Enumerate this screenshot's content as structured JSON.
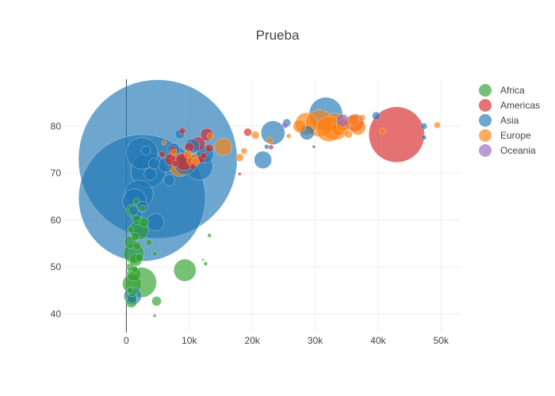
{
  "chart_data": {
    "type": "scatter",
    "title": "Prueba",
    "xlabel": "",
    "ylabel": "",
    "xlim": [
      -10000,
      53000
    ],
    "ylim": [
      36,
      90
    ],
    "x_ticks": [
      0,
      10000,
      20000,
      30000,
      40000,
      50000
    ],
    "x_tick_labels": [
      "0",
      "10k",
      "20k",
      "30k",
      "40k",
      "50k"
    ],
    "y_ticks": [
      40,
      50,
      60,
      70,
      80
    ],
    "y_tick_labels": [
      "40",
      "50",
      "60",
      "70",
      "80"
    ],
    "grid": true,
    "legend_position": "top-right",
    "marker_opacity": 0.65,
    "series": [
      {
        "name": "Africa",
        "color": "#2ca02c",
        "points": [
          {
            "x": 9300,
            "y": 49.3,
            "size": 28
          },
          {
            "x": 2400,
            "y": 46.7,
            "size": 38
          },
          {
            "x": 1200,
            "y": 52.9,
            "size": 26
          },
          {
            "x": 900,
            "y": 46.4,
            "size": 24
          },
          {
            "x": 2000,
            "y": 57.8,
            "size": 24
          },
          {
            "x": 1000,
            "y": 62.0,
            "size": 16
          },
          {
            "x": 700,
            "y": 55.3,
            "size": 16
          },
          {
            "x": 1200,
            "y": 48.5,
            "size": 18
          },
          {
            "x": 1500,
            "y": 51.5,
            "size": 16
          },
          {
            "x": 800,
            "y": 43.5,
            "size": 14
          },
          {
            "x": 800,
            "y": 42.5,
            "size": 14
          },
          {
            "x": 4800,
            "y": 42.7,
            "size": 12
          },
          {
            "x": 1700,
            "y": 60.0,
            "size": 12
          },
          {
            "x": 2800,
            "y": 59.5,
            "size": 12
          },
          {
            "x": 1400,
            "y": 56.5,
            "size": 10
          },
          {
            "x": 3600,
            "y": 55.2,
            "size": 8
          },
          {
            "x": 1700,
            "y": 54.5,
            "size": 10
          },
          {
            "x": 600,
            "y": 50.0,
            "size": 10
          },
          {
            "x": 2100,
            "y": 52.0,
            "size": 10
          },
          {
            "x": 1000,
            "y": 44.5,
            "size": 10
          },
          {
            "x": 4500,
            "y": 52.8,
            "size": 6
          },
          {
            "x": 12600,
            "y": 50.7,
            "size": 5
          },
          {
            "x": 12200,
            "y": 51.5,
            "size": 3
          },
          {
            "x": 13200,
            "y": 56.7,
            "size": 5
          },
          {
            "x": 4500,
            "y": 39.6,
            "size": 4
          },
          {
            "x": 700,
            "y": 58.0,
            "size": 8
          },
          {
            "x": 1600,
            "y": 64.0,
            "size": 8
          },
          {
            "x": 600,
            "y": 45.0,
            "size": 8
          },
          {
            "x": 1300,
            "y": 49.5,
            "size": 8
          },
          {
            "x": 2600,
            "y": 62.5,
            "size": 8
          }
        ]
      },
      {
        "name": "Americas",
        "color": "#d62728",
        "points": [
          {
            "x": 42950,
            "y": 78.2,
            "size": 70
          },
          {
            "x": 12800,
            "y": 78.2,
            "size": 16
          },
          {
            "x": 11400,
            "y": 76.2,
            "size": 18
          },
          {
            "x": 9100,
            "y": 72.4,
            "size": 22
          },
          {
            "x": 7000,
            "y": 72.9,
            "size": 14
          },
          {
            "x": 10000,
            "y": 75.5,
            "size": 12
          },
          {
            "x": 7400,
            "y": 74.9,
            "size": 10
          },
          {
            "x": 19300,
            "y": 78.7,
            "size": 10
          },
          {
            "x": 13200,
            "y": 75.3,
            "size": 10
          },
          {
            "x": 36300,
            "y": 80.7,
            "size": 22
          },
          {
            "x": 11900,
            "y": 73.0,
            "size": 10
          },
          {
            "x": 8900,
            "y": 79.0,
            "size": 8
          },
          {
            "x": 5700,
            "y": 74.0,
            "size": 8
          },
          {
            "x": 18000,
            "y": 69.8,
            "size": 4
          },
          {
            "x": 23000,
            "y": 75.5,
            "size": 6
          },
          {
            "x": 10600,
            "y": 71.4,
            "size": 8
          },
          {
            "x": 12300,
            "y": 73.7,
            "size": 8
          },
          {
            "x": 7700,
            "y": 72.0,
            "size": 8
          }
        ]
      },
      {
        "name": "Asia",
        "color": "#1f77b4",
        "points": [
          {
            "x": 5000,
            "y": 73.0,
            "size": 200
          },
          {
            "x": 2500,
            "y": 64.7,
            "size": 160
          },
          {
            "x": 31700,
            "y": 82.6,
            "size": 42
          },
          {
            "x": 2500,
            "y": 74.2,
            "size": 40
          },
          {
            "x": 3500,
            "y": 70.6,
            "size": 44
          },
          {
            "x": 2000,
            "y": 65.5,
            "size": 36
          },
          {
            "x": 1300,
            "y": 64.1,
            "size": 30
          },
          {
            "x": 11600,
            "y": 71.4,
            "size": 34
          },
          {
            "x": 23300,
            "y": 78.6,
            "size": 30
          },
          {
            "x": 21700,
            "y": 72.8,
            "size": 22
          },
          {
            "x": 4600,
            "y": 59.5,
            "size": 22
          },
          {
            "x": 9300,
            "y": 71.8,
            "size": 26
          },
          {
            "x": 1000,
            "y": 43.8,
            "size": 22
          },
          {
            "x": 28700,
            "y": 78.6,
            "size": 18
          },
          {
            "x": 39700,
            "y": 82.2,
            "size": 10
          },
          {
            "x": 47300,
            "y": 80.0,
            "size": 8
          },
          {
            "x": 47300,
            "y": 77.6,
            "size": 6
          },
          {
            "x": 25500,
            "y": 80.7,
            "size": 10
          },
          {
            "x": 29800,
            "y": 75.6,
            "size": 4
          },
          {
            "x": 22300,
            "y": 75.6,
            "size": 6
          },
          {
            "x": 12500,
            "y": 74.0,
            "size": 22
          },
          {
            "x": 10500,
            "y": 75.8,
            "size": 18
          },
          {
            "x": 8500,
            "y": 78.3,
            "size": 12
          },
          {
            "x": 1600,
            "y": 61.0,
            "size": 14
          },
          {
            "x": 6200,
            "y": 71.7,
            "size": 18
          },
          {
            "x": 3800,
            "y": 69.8,
            "size": 16
          },
          {
            "x": 7500,
            "y": 75.0,
            "size": 16
          },
          {
            "x": 2600,
            "y": 62.8,
            "size": 14
          },
          {
            "x": 1100,
            "y": 62.0,
            "size": 12
          },
          {
            "x": 900,
            "y": 43.3,
            "size": 12
          },
          {
            "x": 3100,
            "y": 74.8,
            "size": 12
          },
          {
            "x": 6800,
            "y": 68.5,
            "size": 14
          },
          {
            "x": 4400,
            "y": 72.0,
            "size": 14
          }
        ]
      },
      {
        "name": "Europe",
        "color": "#ff7f0e",
        "points": [
          {
            "x": 33200,
            "y": 79.9,
            "size": 34
          },
          {
            "x": 30700,
            "y": 80.6,
            "size": 34
          },
          {
            "x": 32200,
            "y": 79.4,
            "size": 32
          },
          {
            "x": 28600,
            "y": 80.5,
            "size": 28
          },
          {
            "x": 8500,
            "y": 71.8,
            "size": 30
          },
          {
            "x": 15400,
            "y": 75.6,
            "size": 22
          },
          {
            "x": 36800,
            "y": 79.8,
            "size": 20
          },
          {
            "x": 33700,
            "y": 79.4,
            "size": 18
          },
          {
            "x": 34400,
            "y": 80.2,
            "size": 16
          },
          {
            "x": 27500,
            "y": 80.0,
            "size": 16
          },
          {
            "x": 36100,
            "y": 81.2,
            "size": 14
          },
          {
            "x": 10600,
            "y": 72.8,
            "size": 16
          },
          {
            "x": 49400,
            "y": 80.2,
            "size": 8
          },
          {
            "x": 40700,
            "y": 78.9,
            "size": 8
          },
          {
            "x": 20500,
            "y": 78.1,
            "size": 10
          },
          {
            "x": 18000,
            "y": 73.3,
            "size": 10
          },
          {
            "x": 9800,
            "y": 74.0,
            "size": 10
          },
          {
            "x": 11000,
            "y": 72.5,
            "size": 10
          },
          {
            "x": 13300,
            "y": 77.9,
            "size": 8
          },
          {
            "x": 25800,
            "y": 77.9,
            "size": 6
          },
          {
            "x": 37500,
            "y": 81.8,
            "size": 8
          },
          {
            "x": 35300,
            "y": 78.3,
            "size": 10
          },
          {
            "x": 6000,
            "y": 76.4,
            "size": 6
          },
          {
            "x": 7500,
            "y": 74.5,
            "size": 8
          },
          {
            "x": 18700,
            "y": 74.7,
            "size": 8
          },
          {
            "x": 22800,
            "y": 77.0,
            "size": 8
          }
        ]
      },
      {
        "name": "Oceania",
        "color": "#9467bd",
        "points": [
          {
            "x": 34400,
            "y": 81.2,
            "size": 16
          },
          {
            "x": 25200,
            "y": 80.2,
            "size": 8
          }
        ]
      }
    ]
  }
}
